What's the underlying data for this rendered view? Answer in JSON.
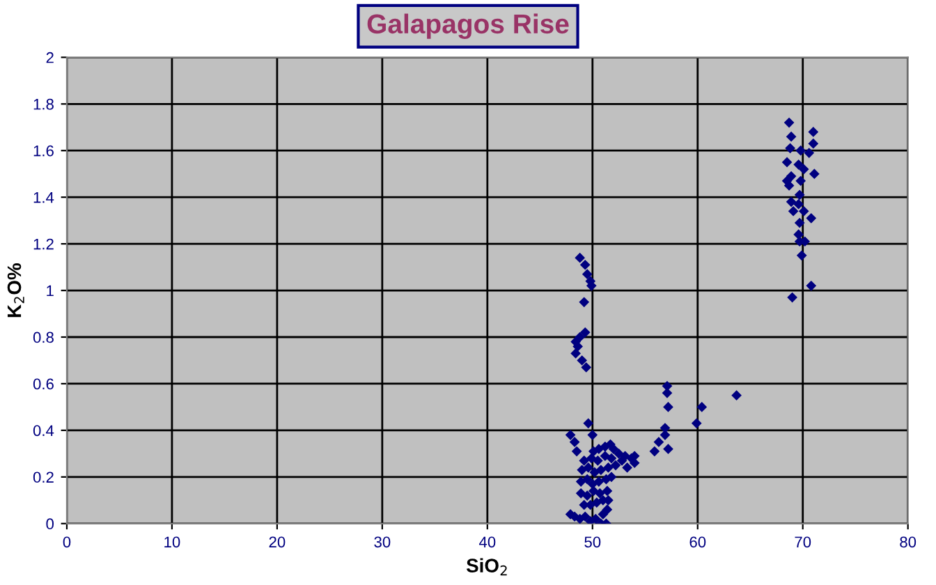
{
  "chart_data": {
    "type": "scatter",
    "title": "Galapagos Rise",
    "xlabel": "SiO$_{2}$",
    "ylabel": "K$_{2}$O%",
    "xlim": [
      0,
      80
    ],
    "xticks": [
      0,
      10,
      20,
      30,
      40,
      50,
      60,
      70,
      80
    ],
    "ylim": [
      0,
      2
    ],
    "yticks": [
      0,
      0.2,
      0.4,
      0.6,
      0.8,
      1,
      1.2,
      1.4,
      1.6,
      1.8,
      2
    ],
    "grid": true,
    "marker": "diamond",
    "legend": false,
    "series": [
      {
        "color": "#000080",
        "x": [
          68.7,
          71.0,
          68.9,
          71.0,
          68.8,
          69.8,
          70.6,
          68.5,
          69.6,
          70.1,
          71.1,
          68.9,
          68.5,
          68.7,
          69.8,
          69.7,
          68.9,
          69.6,
          69.1,
          70.1,
          70.8,
          69.7,
          69.6,
          70.2,
          69.7,
          69.9,
          70.8,
          69.0,
          48.8,
          49.3,
          49.5,
          49.8,
          49.9,
          49.2,
          48.8,
          48.6,
          48.4,
          49.0,
          49.4,
          49.3,
          48.4,
          57.1,
          57.1,
          57.2,
          60.4,
          63.7,
          59.9,
          56.9,
          56.9,
          56.3,
          57.2,
          55.9,
          49.6,
          47.9,
          48.3,
          50.0,
          48.5,
          54.0,
          51.7,
          47.9,
          48.3,
          48.8,
          49.3,
          49.8,
          50.3,
          50.8,
          51.3,
          51.0,
          51.4,
          49.2,
          49.8,
          50.4,
          51.0,
          51.5,
          48.9,
          49.5,
          50.1,
          50.7,
          51.4,
          48.9,
          49.5,
          50.0,
          50.6,
          51.3,
          51.8,
          49.0,
          49.6,
          50.2,
          50.8,
          51.5,
          52.2,
          52.8,
          49.2,
          49.9,
          50.5,
          51.2,
          51.8,
          52.5,
          53.1,
          53.7,
          54.0,
          53.3,
          50.6,
          51.2,
          50.1,
          52.0
        ],
        "values": [
          1.72,
          1.68,
          1.66,
          1.63,
          1.61,
          1.6,
          1.59,
          1.55,
          1.54,
          1.52,
          1.5,
          1.49,
          1.47,
          1.45,
          1.47,
          1.41,
          1.38,
          1.37,
          1.34,
          1.34,
          1.31,
          1.29,
          1.24,
          1.21,
          1.21,
          1.15,
          1.02,
          0.97,
          1.14,
          1.11,
          1.07,
          1.04,
          1.02,
          0.95,
          0.8,
          0.76,
          0.73,
          0.7,
          0.67,
          0.82,
          0.78,
          0.59,
          0.56,
          0.5,
          0.5,
          0.55,
          0.43,
          0.41,
          0.38,
          0.35,
          0.32,
          0.31,
          0.43,
          0.38,
          0.35,
          0.38,
          0.31,
          0.29,
          0.34,
          0.04,
          0.03,
          0.02,
          0.03,
          0.01,
          0.02,
          0.0,
          0.0,
          0.04,
          0.06,
          0.08,
          0.08,
          0.09,
          0.1,
          0.1,
          0.13,
          0.12,
          0.14,
          0.13,
          0.14,
          0.18,
          0.19,
          0.17,
          0.18,
          0.19,
          0.2,
          0.23,
          0.24,
          0.22,
          0.23,
          0.24,
          0.25,
          0.27,
          0.27,
          0.28,
          0.27,
          0.29,
          0.28,
          0.3,
          0.29,
          0.28,
          0.26,
          0.24,
          0.32,
          0.33,
          0.31,
          0.32
        ]
      }
    ]
  }
}
